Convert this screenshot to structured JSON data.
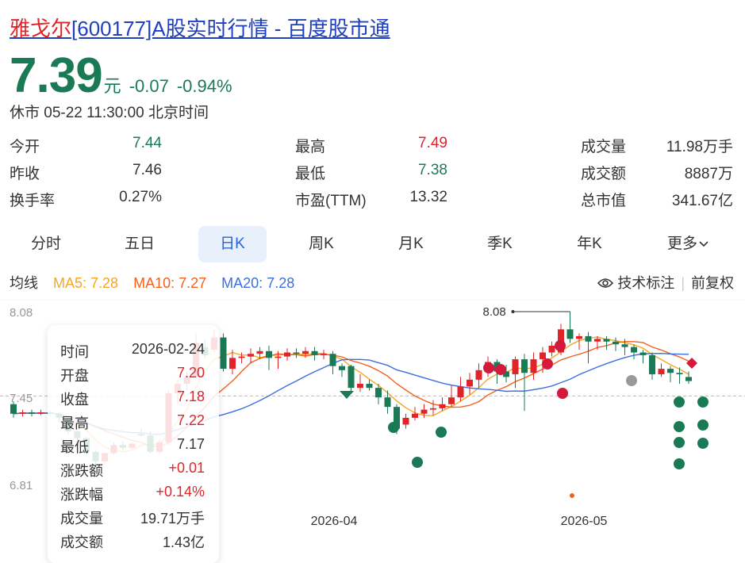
{
  "header": {
    "name": "雅戈尔",
    "rest": "[600177]A股实时行情 - 百度股市通"
  },
  "quote": {
    "price": "7.39",
    "unit": "元",
    "change": "-0.07",
    "change_pct": "-0.94%",
    "status": "休市 05-22 11:30:00 北京时间"
  },
  "stats": [
    {
      "label": "今开",
      "value": "7.44",
      "color": "green"
    },
    {
      "label": "昨收",
      "value": "7.46",
      "color": "dark"
    },
    {
      "label": "换手率",
      "value": "0.27%",
      "color": "dark"
    },
    {
      "label": "最高",
      "value": "7.49",
      "color": "red"
    },
    {
      "label": "最低",
      "value": "7.38",
      "color": "green"
    },
    {
      "label": "市盈(TTM)",
      "value": "13.32",
      "color": "dark"
    },
    {
      "label": "成交量",
      "value": "11.98万手",
      "color": "dark"
    },
    {
      "label": "成交额",
      "value": "8887万",
      "color": "dark"
    },
    {
      "label": "总市值",
      "value": "341.67亿",
      "color": "dark"
    }
  ],
  "tabs": [
    "分时",
    "五日",
    "日K",
    "周K",
    "月K",
    "季K",
    "年K",
    "更多"
  ],
  "active_tab": "日K",
  "ma": {
    "label": "均线",
    "ma5": "MA5: 7.28",
    "ma10": "MA10: 7.27",
    "ma20": "MA20: 7.28",
    "colors": {
      "ma5": "#f5a623",
      "ma10": "#f2611d",
      "ma20": "#3b6fe0"
    }
  },
  "tech_label": "技术标注",
  "adjust_label": "前复权",
  "tooltip": [
    {
      "k": "时间",
      "v": "2026-02-24",
      "c": "dark"
    },
    {
      "k": "开盘",
      "v": "7.20",
      "c": "red"
    },
    {
      "k": "收盘",
      "v": "7.18",
      "c": "red"
    },
    {
      "k": "最高",
      "v": "7.22",
      "c": "red"
    },
    {
      "k": "最低",
      "v": "7.17",
      "c": "dark"
    },
    {
      "k": "涨跌额",
      "v": "+0.01",
      "c": "red"
    },
    {
      "k": "涨跌幅",
      "v": "+0.14%",
      "c": "red"
    },
    {
      "k": "成交量",
      "v": "19.71万手",
      "c": "dark"
    },
    {
      "k": "成交额",
      "v": "1.43亿",
      "c": "dark"
    }
  ],
  "chart_data": {
    "type": "candlestick",
    "y_ticks": [
      "8.08",
      "7.45",
      "6.81"
    ],
    "ylim": [
      6.81,
      8.08
    ],
    "x_labels": [
      "2026-04",
      "2026-05"
    ],
    "max_label": "8.08",
    "colors": {
      "up": "#e0242a",
      "down": "#1a7a55"
    },
    "candles": [
      [
        7.4,
        7.33,
        7.42,
        7.3
      ],
      [
        7.33,
        7.34,
        7.36,
        7.31
      ],
      [
        7.34,
        7.33,
        7.36,
        7.31
      ],
      [
        7.33,
        7.34,
        7.36,
        7.32
      ],
      [
        7.34,
        7.33,
        7.35,
        7.31
      ],
      [
        7.33,
        7.3,
        7.34,
        7.27
      ],
      [
        7.3,
        7.2,
        7.31,
        7.18
      ],
      [
        7.2,
        7.15,
        7.21,
        7.11
      ],
      [
        7.15,
        7.05,
        7.16,
        7.03
      ],
      [
        7.05,
        6.98,
        7.06,
        6.95
      ],
      [
        6.98,
        7.04,
        7.05,
        6.96
      ],
      [
        7.04,
        7.1,
        7.12,
        7.03
      ],
      [
        7.1,
        7.08,
        7.13,
        7.06
      ],
      [
        7.08,
        7.11,
        7.12,
        7.07
      ],
      [
        7.18,
        7.17,
        7.22,
        7.16
      ],
      [
        7.17,
        7.05,
        7.2,
        7.04
      ],
      [
        7.05,
        7.12,
        7.14,
        7.03
      ],
      [
        7.12,
        7.48,
        7.5,
        7.1
      ],
      [
        7.48,
        7.55,
        7.58,
        7.4
      ],
      [
        7.55,
        7.6,
        7.64,
        7.5
      ],
      [
        7.6,
        7.85,
        7.92,
        7.58
      ],
      [
        7.82,
        7.76,
        7.87,
        7.74
      ],
      [
        7.8,
        7.89,
        7.95,
        7.78
      ],
      [
        7.89,
        7.66,
        7.92,
        7.64
      ],
      [
        7.66,
        7.74,
        7.8,
        7.62
      ],
      [
        7.74,
        7.75,
        7.78,
        7.7
      ],
      [
        7.75,
        7.77,
        7.81,
        7.7
      ],
      [
        7.77,
        7.79,
        7.82,
        7.73
      ],
      [
        7.79,
        7.74,
        7.83,
        7.65
      ],
      [
        7.74,
        7.75,
        7.79,
        7.66
      ],
      [
        7.75,
        7.78,
        7.81,
        7.72
      ],
      [
        7.78,
        7.77,
        7.81,
        7.74
      ],
      [
        7.77,
        7.79,
        7.82,
        7.74
      ],
      [
        7.79,
        7.76,
        7.82,
        7.72
      ],
      [
        7.76,
        7.77,
        7.8,
        7.73
      ],
      [
        7.77,
        7.68,
        7.79,
        7.62
      ],
      [
        7.68,
        7.65,
        7.7,
        7.6
      ],
      [
        7.68,
        7.52,
        7.69,
        7.48
      ],
      [
        7.52,
        7.55,
        7.62,
        7.49
      ],
      [
        7.55,
        7.52,
        7.58,
        7.5
      ],
      [
        7.52,
        7.45,
        7.55,
        7.4
      ],
      [
        7.45,
        7.38,
        7.5,
        7.33
      ],
      [
        7.38,
        7.22,
        7.4,
        7.18
      ],
      [
        7.25,
        7.3,
        7.33,
        7.22
      ],
      [
        7.3,
        7.33,
        7.38,
        7.28
      ],
      [
        7.33,
        7.36,
        7.4,
        7.3
      ],
      [
        7.36,
        7.37,
        7.43,
        7.32
      ],
      [
        7.37,
        7.4,
        7.45,
        7.35
      ],
      [
        7.4,
        7.45,
        7.54,
        7.38
      ],
      [
        7.45,
        7.53,
        7.6,
        7.42
      ],
      [
        7.53,
        7.58,
        7.63,
        7.47
      ],
      [
        7.58,
        7.65,
        7.7,
        7.52
      ],
      [
        7.65,
        7.71,
        7.75,
        7.6
      ],
      [
        7.71,
        7.64,
        7.73,
        7.55
      ],
      [
        7.64,
        7.6,
        7.69,
        7.56
      ],
      [
        7.62,
        7.73,
        7.75,
        7.52
      ],
      [
        7.73,
        7.63,
        7.77,
        7.35
      ],
      [
        7.63,
        7.73,
        7.78,
        7.58
      ],
      [
        7.73,
        7.78,
        7.82,
        7.63
      ],
      [
        7.78,
        7.83,
        7.86,
        7.75
      ],
      [
        7.78,
        7.95,
        7.99,
        7.76
      ],
      [
        7.95,
        7.88,
        8.08,
        7.85
      ],
      [
        7.88,
        7.9,
        7.92,
        7.8
      ],
      [
        7.9,
        7.86,
        7.93,
        7.7
      ],
      [
        7.86,
        7.88,
        7.9,
        7.8
      ],
      [
        7.88,
        7.86,
        7.9,
        7.8
      ],
      [
        7.86,
        7.84,
        7.89,
        7.79
      ],
      [
        7.84,
        7.82,
        7.88,
        7.76
      ],
      [
        7.82,
        7.78,
        7.84,
        7.73
      ],
      [
        7.78,
        7.76,
        7.8,
        7.7
      ],
      [
        7.76,
        7.62,
        7.78,
        7.58
      ],
      [
        7.62,
        7.66,
        7.7,
        7.6
      ],
      [
        7.66,
        7.63,
        7.68,
        7.56
      ],
      [
        7.63,
        7.62,
        7.67,
        7.55
      ],
      [
        7.6,
        7.57,
        7.64,
        7.55
      ]
    ]
  }
}
